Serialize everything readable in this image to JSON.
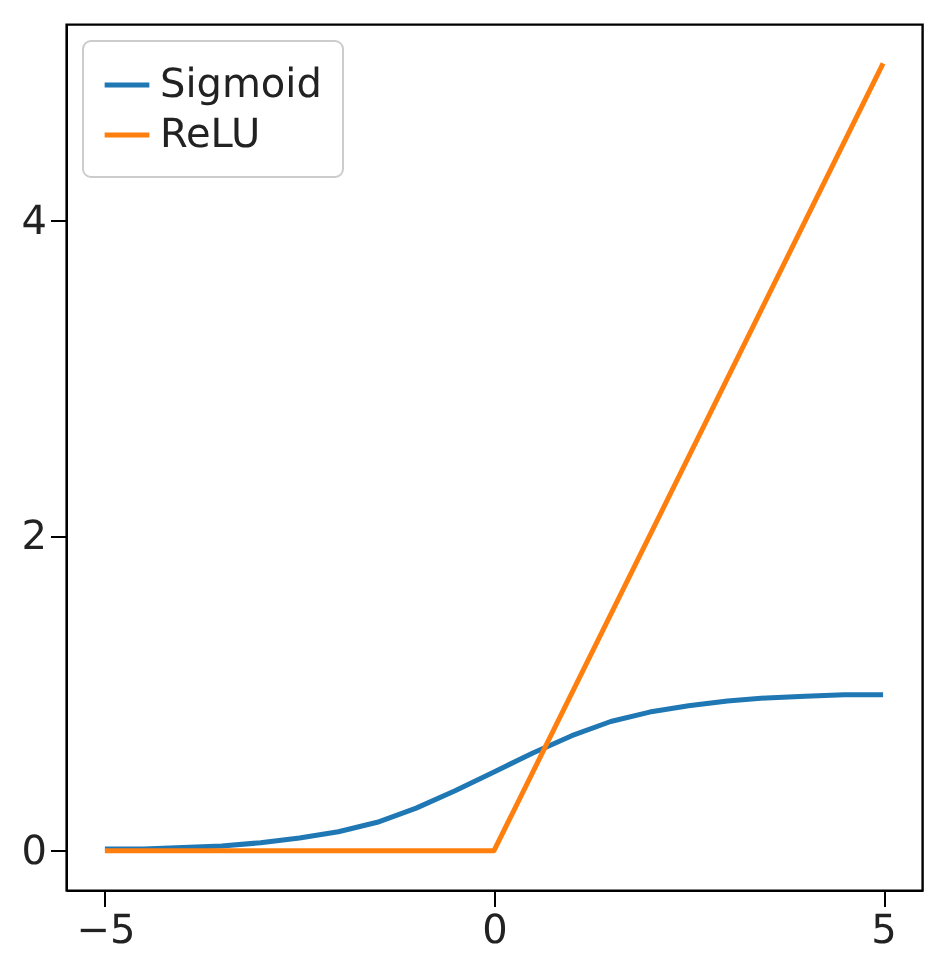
{
  "chart_data": {
    "type": "line",
    "xlim": [
      -5.5,
      5.5
    ],
    "xticks": [
      -5,
      0,
      5
    ],
    "ylim": [
      -0.25,
      5.25
    ],
    "yticks": [
      0,
      2,
      4
    ],
    "grid": false,
    "legend": "top left",
    "marker": "none",
    "line_style": "solid",
    "series": [
      {
        "name": "Sigmoid",
        "color": "#1f77b4",
        "x": [
          -5,
          -4.5,
          -4,
          -3.5,
          -3,
          -2.5,
          -2,
          -1.5,
          -1,
          -0.5,
          0,
          0.5,
          1,
          1.5,
          2,
          2.5,
          3,
          3.5,
          4,
          4.5,
          5
        ],
        "values": [
          0.01,
          0.01,
          0.02,
          0.03,
          0.05,
          0.08,
          0.12,
          0.18,
          0.27,
          0.38,
          0.5,
          0.62,
          0.73,
          0.82,
          0.88,
          0.92,
          0.95,
          0.97,
          0.98,
          0.99,
          0.99
        ]
      },
      {
        "name": "ReLU",
        "color": "#ff7f0e",
        "x": [
          -5,
          0,
          5
        ],
        "values": [
          0,
          0,
          5
        ]
      }
    ]
  }
}
